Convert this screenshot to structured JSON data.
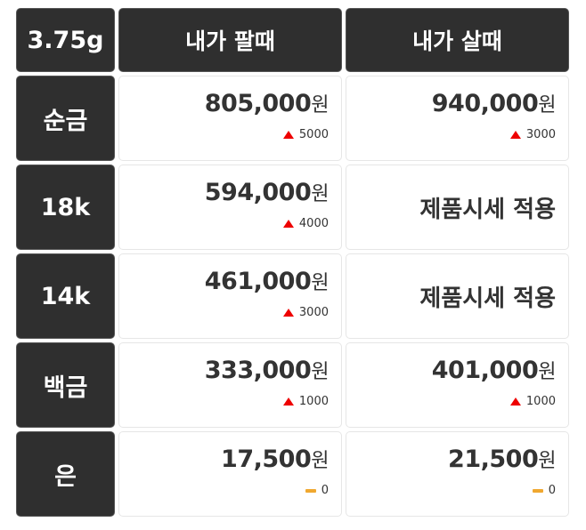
{
  "header": {
    "unit": "3.75g",
    "sell": "내가 팔때",
    "buy": "내가 살때"
  },
  "currency": "원",
  "colors": {
    "up": "#e00000",
    "flat": "#f0a830",
    "dark": "#2f2f2f"
  },
  "rows": [
    {
      "label": "순금",
      "sell": {
        "price": "805,000",
        "trend": "up",
        "change": "5000"
      },
      "buy": {
        "price": "940,000",
        "trend": "up",
        "change": "3000"
      }
    },
    {
      "label": "18k",
      "sell": {
        "price": "594,000",
        "trend": "up",
        "change": "4000"
      },
      "buy": {
        "text": "제품시세 적용"
      }
    },
    {
      "label": "14k",
      "sell": {
        "price": "461,000",
        "trend": "up",
        "change": "3000"
      },
      "buy": {
        "text": "제품시세 적용"
      }
    },
    {
      "label": "백금",
      "sell": {
        "price": "333,000",
        "trend": "up",
        "change": "1000"
      },
      "buy": {
        "price": "401,000",
        "trend": "up",
        "change": "1000"
      }
    },
    {
      "label": "은",
      "sell": {
        "price": "17,500",
        "trend": "flat",
        "change": "0"
      },
      "buy": {
        "price": "21,500",
        "trend": "flat",
        "change": "0"
      }
    }
  ]
}
